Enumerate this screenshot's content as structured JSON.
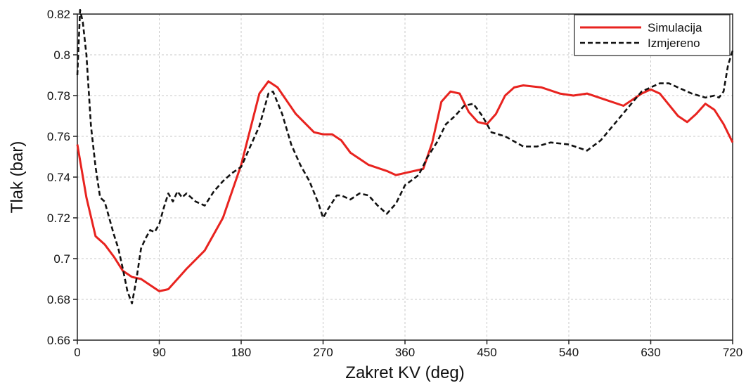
{
  "chart_data": {
    "type": "line",
    "xlabel": "Zakret KV (deg)",
    "ylabel": "Tlak (bar)",
    "xlim": [
      0,
      720
    ],
    "ylim": [
      0.66,
      0.82
    ],
    "grid": true,
    "legend_position": "top-right",
    "x_ticks": [
      0,
      90,
      180,
      270,
      360,
      450,
      540,
      630,
      720
    ],
    "x_tick_labels": [
      "0",
      "90",
      "180",
      "270",
      "360",
      "450",
      "540",
      "630",
      "720"
    ],
    "y_ticks": [
      0.66,
      0.68,
      0.7,
      0.72,
      0.74,
      0.76,
      0.78,
      0.8,
      0.82
    ],
    "y_tick_labels": [
      "0.66",
      "0.68",
      "0.7",
      "0.72",
      "0.74",
      "0.76",
      "0.78",
      "0.8",
      "0.82"
    ],
    "series": [
      {
        "name": "Simulacija",
        "color": "#e8231f",
        "style": "solid",
        "x": [
          0,
          10,
          20,
          30,
          40,
          50,
          60,
          70,
          80,
          90,
          100,
          110,
          120,
          140,
          160,
          180,
          200,
          210,
          220,
          240,
          260,
          270,
          280,
          290,
          300,
          320,
          340,
          350,
          360,
          380,
          390,
          400,
          410,
          420,
          430,
          440,
          450,
          460,
          470,
          480,
          490,
          510,
          530,
          545,
          560,
          580,
          600,
          620,
          630,
          640,
          660,
          670,
          680,
          690,
          700,
          710,
          720
        ],
        "y": [
          0.756,
          0.73,
          0.711,
          0.707,
          0.701,
          0.694,
          0.691,
          0.69,
          0.687,
          0.684,
          0.685,
          0.69,
          0.695,
          0.704,
          0.72,
          0.746,
          0.781,
          0.787,
          0.784,
          0.771,
          0.762,
          0.761,
          0.761,
          0.758,
          0.752,
          0.746,
          0.743,
          0.741,
          0.742,
          0.744,
          0.757,
          0.777,
          0.782,
          0.781,
          0.772,
          0.767,
          0.766,
          0.771,
          0.78,
          0.784,
          0.785,
          0.784,
          0.781,
          0.78,
          0.781,
          0.778,
          0.775,
          0.781,
          0.783,
          0.781,
          0.77,
          0.767,
          0.771,
          0.776,
          0.773,
          0.766,
          0.757
        ]
      },
      {
        "name": "Izmjereno",
        "color": "#111111",
        "style": "dashed",
        "x": [
          0,
          3,
          6,
          10,
          15,
          20,
          25,
          30,
          35,
          40,
          45,
          50,
          55,
          60,
          65,
          70,
          75,
          80,
          85,
          90,
          95,
          100,
          105,
          110,
          115,
          120,
          130,
          140,
          150,
          160,
          170,
          180,
          190,
          200,
          210,
          215,
          225,
          235,
          245,
          255,
          265,
          270,
          275,
          285,
          290,
          300,
          310,
          320,
          330,
          340,
          350,
          360,
          375,
          385,
          395,
          405,
          415,
          425,
          435,
          445,
          455,
          470,
          490,
          505,
          520,
          540,
          560,
          575,
          590,
          605,
          620,
          640,
          650,
          660,
          675,
          690,
          700,
          705,
          710,
          715,
          720
        ],
        "y": [
          0.79,
          0.822,
          0.816,
          0.8,
          0.765,
          0.745,
          0.73,
          0.728,
          0.72,
          0.712,
          0.705,
          0.695,
          0.684,
          0.678,
          0.69,
          0.705,
          0.71,
          0.714,
          0.713,
          0.717,
          0.725,
          0.732,
          0.728,
          0.733,
          0.73,
          0.732,
          0.728,
          0.726,
          0.733,
          0.738,
          0.742,
          0.745,
          0.755,
          0.765,
          0.781,
          0.782,
          0.771,
          0.756,
          0.746,
          0.738,
          0.727,
          0.72,
          0.724,
          0.731,
          0.731,
          0.729,
          0.732,
          0.731,
          0.726,
          0.722,
          0.727,
          0.736,
          0.741,
          0.75,
          0.757,
          0.766,
          0.77,
          0.775,
          0.776,
          0.77,
          0.762,
          0.76,
          0.755,
          0.755,
          0.757,
          0.756,
          0.753,
          0.758,
          0.766,
          0.774,
          0.782,
          0.786,
          0.786,
          0.784,
          0.781,
          0.779,
          0.78,
          0.779,
          0.782,
          0.795,
          0.802
        ]
      }
    ]
  }
}
